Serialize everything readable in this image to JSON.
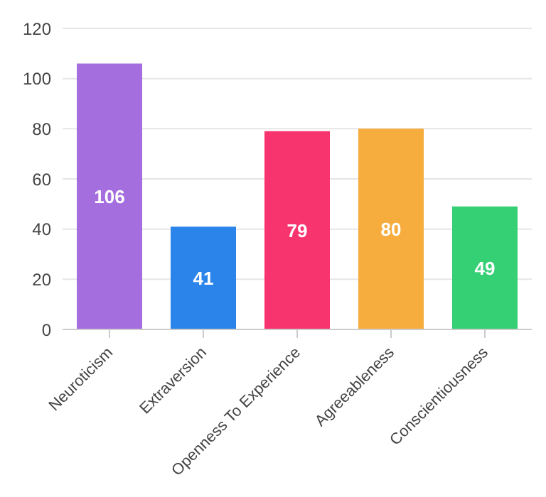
{
  "chart_data": {
    "type": "bar",
    "categories": [
      "Neuroticism",
      "Extraversion",
      "Openness To Experience",
      "Agreeableness",
      "Conscientiousness"
    ],
    "values": [
      106,
      41,
      79,
      80,
      49
    ],
    "colors": [
      "#a46ede",
      "#2a84ea",
      "#f8346f",
      "#f6ad3e",
      "#35cf74"
    ],
    "ylim": [
      0,
      120
    ],
    "yticks": [
      0,
      20,
      40,
      60,
      80,
      100,
      120
    ],
    "grid": "y",
    "data_labels": true
  }
}
